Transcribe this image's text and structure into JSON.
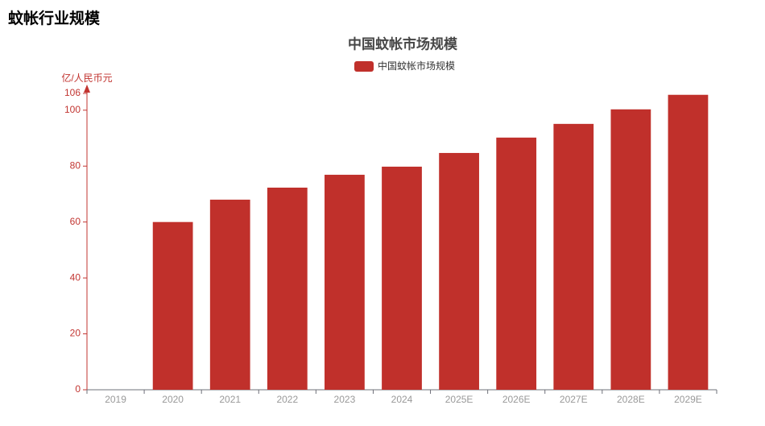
{
  "heading": "蚊帐行业规模",
  "chart_data": {
    "type": "bar",
    "title": "中国蚊帐市场规模",
    "y_label": "亿/人民币元",
    "categories": [
      "2019",
      "2020",
      "2021",
      "2022",
      "2023",
      "2024",
      "2025E",
      "2026E",
      "2027E",
      "2028E",
      "2029E"
    ],
    "series": [
      {
        "name": "中国蚊帐市场规模",
        "color": "#c0302b",
        "values": [
          null,
          60,
          68,
          72.3,
          76.9,
          79.8,
          84.7,
          90.2,
          95.1,
          100.3,
          105.5
        ]
      }
    ],
    "ylim": [
      0,
      106
    ],
    "yticks": [
      0,
      20,
      40,
      60,
      80,
      100,
      106
    ],
    "axis_color": "#c23531",
    "grid": false,
    "legend": "top"
  }
}
